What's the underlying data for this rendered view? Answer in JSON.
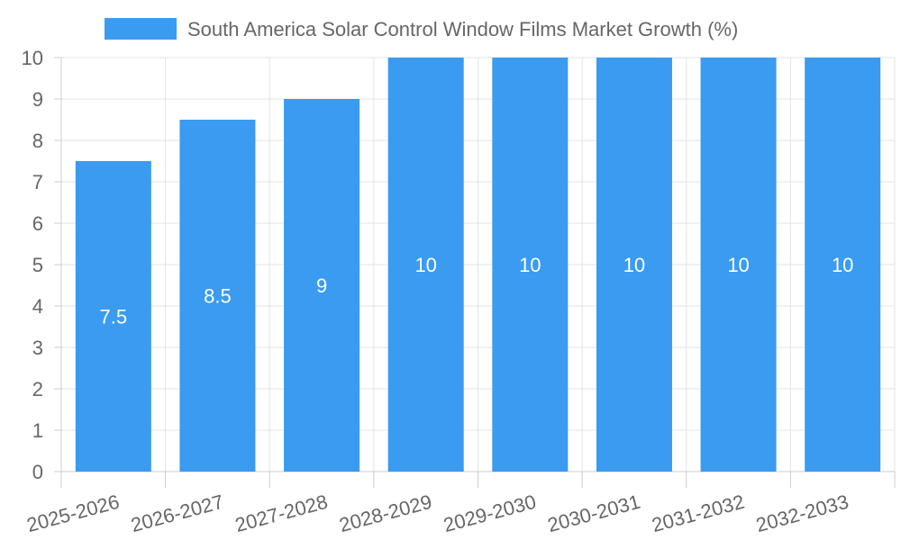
{
  "chart_data": {
    "type": "bar",
    "title": "",
    "xlabel": "",
    "ylabel": "",
    "categories": [
      "2025-2026",
      "2026-2027",
      "2027-2028",
      "2028-2029",
      "2029-2030",
      "2030-2031",
      "2031-2032",
      "2032-2033"
    ],
    "series": [
      {
        "name": "South America Solar Control Window Films Market Growth (%)",
        "values": [
          7.5,
          8.5,
          9,
          10,
          10,
          10,
          10,
          10
        ],
        "color": "#3a9bf0"
      }
    ],
    "ylim": [
      0,
      10
    ],
    "yticks": [
      0,
      1,
      2,
      3,
      4,
      5,
      6,
      7,
      8,
      9,
      10
    ],
    "grid": true,
    "legend_position": "top-center",
    "data_labels": [
      "7.5",
      "8.5",
      "9",
      "10",
      "10",
      "10",
      "10",
      "10"
    ]
  }
}
